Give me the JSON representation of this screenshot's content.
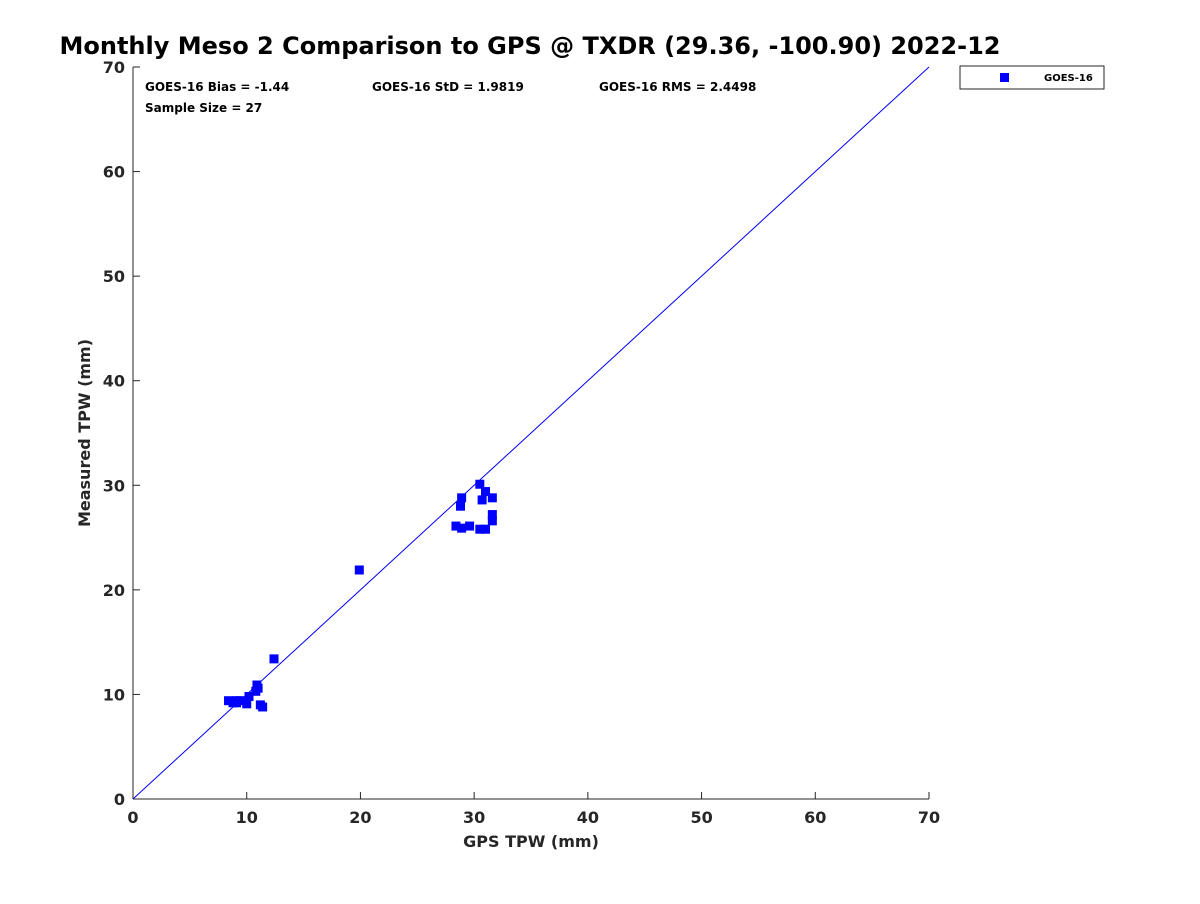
{
  "chart_data": {
    "type": "scatter",
    "title": "Monthly Meso 2 Comparison to GPS @ TXDR (29.36, -100.90) 2022-12",
    "xlabel": "GPS TPW (mm)",
    "ylabel": "Measured TPW (mm)",
    "xlim": [
      0,
      70
    ],
    "ylim": [
      0,
      70
    ],
    "xticks": [
      0,
      10,
      20,
      30,
      40,
      50,
      60,
      70
    ],
    "yticks": [
      0,
      10,
      20,
      30,
      40,
      50,
      60,
      70
    ],
    "grid": false,
    "legend_position": "outside-top-right",
    "annotations": [
      "GOES-16 Bias = -1.44",
      "GOES-16 StD = 1.9819",
      "GOES-16 RMS = 2.4498",
      "Sample Size = 27"
    ],
    "reference_line": {
      "name": "1:1",
      "color": "#0000ff",
      "x": [
        0,
        70
      ],
      "y": [
        0,
        70
      ]
    },
    "series": [
      {
        "name": "GOES-16",
        "color": "#0000ff",
        "marker": "square",
        "x": [
          30.5,
          31.0,
          28.9,
          28.8,
          30.7,
          31.6,
          31.6,
          31.6,
          28.4,
          28.9,
          29.6,
          30.5,
          31.0,
          19.9,
          12.4,
          10.9,
          10.8,
          11.0,
          10.2,
          10.0,
          8.4,
          9.1,
          9.4,
          8.8,
          9.1,
          11.2,
          11.4
        ],
        "y": [
          30.1,
          29.4,
          28.8,
          28.0,
          28.6,
          28.8,
          27.2,
          26.6,
          26.1,
          25.9,
          26.1,
          25.8,
          25.8,
          21.9,
          13.4,
          10.9,
          10.3,
          10.6,
          9.8,
          9.1,
          9.4,
          9.4,
          9.4,
          9.2,
          9.2,
          9.0,
          8.8
        ]
      }
    ]
  }
}
